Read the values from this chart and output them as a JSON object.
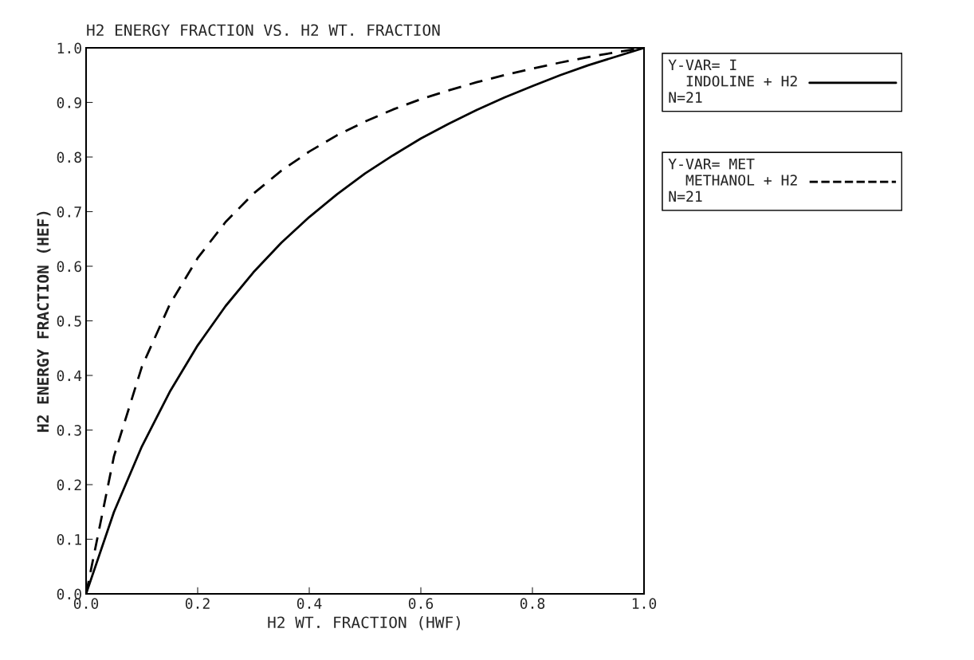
{
  "chart_data": {
    "type": "line",
    "title": "H2 ENERGY FRACTION VS. H2 WT. FRACTION",
    "xlabel": "H2 WT. FRACTION (HWF)",
    "ylabel": "H2 ENERGY FRACTION (HEF)",
    "x": [
      0,
      0.05,
      0.1,
      0.15,
      0.2,
      0.25,
      0.3,
      0.35,
      0.4,
      0.45,
      0.5,
      0.55,
      0.6,
      0.65,
      0.7,
      0.75,
      0.8,
      0.85,
      0.9,
      0.95,
      1
    ],
    "series": [
      {
        "name": "Y-VAR= I\n  INDOLINE + H2\nN=21",
        "color": "#000000",
        "line_style": "solid",
        "values": [
          0,
          0.15,
          0.27,
          0.37,
          0.455,
          0.527,
          0.589,
          0.643,
          0.69,
          0.732,
          0.77,
          0.803,
          0.834,
          0.861,
          0.886,
          0.909,
          0.93,
          0.95,
          0.968,
          0.984,
          1
        ]
      },
      {
        "name": "Y-VAR= MET\n  METHANOL + H2\nN=21",
        "color": "#000000",
        "line_style": "dashed",
        "values": [
          0,
          0.252,
          0.416,
          0.53,
          0.615,
          0.681,
          0.733,
          0.775,
          0.81,
          0.84,
          0.865,
          0.887,
          0.906,
          0.922,
          0.937,
          0.95,
          0.962,
          0.973,
          0.983,
          0.992,
          1
        ]
      }
    ],
    "xlim": [
      0,
      1
    ],
    "ylim": [
      0,
      1
    ],
    "xticks": [
      {
        "value": 0,
        "label": "0.0"
      },
      {
        "value": 0.2,
        "label": "0.2"
      },
      {
        "value": 0.4,
        "label": "0.4"
      },
      {
        "value": 0.6,
        "label": "0.6"
      },
      {
        "value": 0.8,
        "label": "0.8"
      },
      {
        "value": 1,
        "label": "1.0"
      }
    ],
    "yticks": [
      {
        "value": 0,
        "label": "0.0"
      },
      {
        "value": 0.1,
        "label": "0.1"
      },
      {
        "value": 0.2,
        "label": "0.2"
      },
      {
        "value": 0.3,
        "label": "0.3"
      },
      {
        "value": 0.4,
        "label": "0.4"
      },
      {
        "value": 0.5,
        "label": "0.5"
      },
      {
        "value": 0.6,
        "label": "0.6"
      },
      {
        "value": 0.7,
        "label": "0.7"
      },
      {
        "value": 0.8,
        "label": "0.8"
      },
      {
        "value": 0.9,
        "label": "0.9"
      },
      {
        "value": 1,
        "label": "1.0"
      }
    ],
    "legend": "right",
    "grid": false
  }
}
